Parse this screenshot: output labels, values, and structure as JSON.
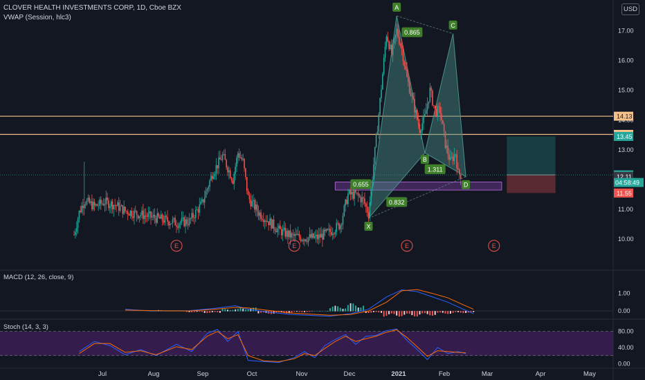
{
  "header": {
    "title": "CLOVER HEALTH INVESTMENTS CORP, 1D, Cboe BZX",
    "indicator": "VWAP (Session, hlc3)",
    "currency": "USD"
  },
  "colors": {
    "background": "#131722",
    "up": "#26a69a",
    "down": "#ef5350",
    "level_line": "#f5c18a",
    "pattern_fill": "#4a8f88",
    "pattern_label": "#3f7f2a",
    "zone": "#7b3fa0",
    "stoch_band": "#4b1f6b",
    "macd_line": "#2962ff",
    "signal_line": "#ff6d00"
  },
  "chart_data": [
    {
      "type": "candlestick",
      "title": "CLOVER HEALTH INVESTMENTS CORP, 1D, Cboe BZX",
      "x_ticks": [
        "Jul",
        "Aug",
        "Sep",
        "Oct",
        "Nov",
        "Dec",
        "2021",
        "Feb",
        "Mar",
        "Apr",
        "May"
      ],
      "y_ticks": [
        "10.00",
        "11.00",
        "12.00",
        "13.00",
        "14.00",
        "15.00",
        "16.00",
        "17.00"
      ],
      "ylim": [
        9.1,
        17.8
      ],
      "close_path": [
        {
          "t": 0,
          "y": 10.15
        },
        {
          "t": 2,
          "y": 10.9
        },
        {
          "t": 4,
          "y": 11.3
        },
        {
          "t": 8,
          "y": 11.1
        },
        {
          "t": 12,
          "y": 11.25
        },
        {
          "t": 16,
          "y": 11.15
        },
        {
          "t": 20,
          "y": 10.95
        },
        {
          "t": 25,
          "y": 10.85
        },
        {
          "t": 30,
          "y": 10.75
        },
        {
          "t": 35,
          "y": 10.65
        },
        {
          "t": 40,
          "y": 10.55
        },
        {
          "t": 45,
          "y": 10.6
        },
        {
          "t": 50,
          "y": 11.2
        },
        {
          "t": 54,
          "y": 12.2
        },
        {
          "t": 58,
          "y": 12.8
        },
        {
          "t": 62,
          "y": 12.0
        },
        {
          "t": 64,
          "y": 12.9
        },
        {
          "t": 66,
          "y": 12.6
        },
        {
          "t": 68,
          "y": 11.4
        },
        {
          "t": 72,
          "y": 10.9
        },
        {
          "t": 76,
          "y": 10.6
        },
        {
          "t": 80,
          "y": 10.3
        },
        {
          "t": 85,
          "y": 10.1
        },
        {
          "t": 90,
          "y": 10.05
        },
        {
          "t": 95,
          "y": 10.05
        },
        {
          "t": 100,
          "y": 10.25
        },
        {
          "t": 104,
          "y": 10.5
        },
        {
          "t": 107,
          "y": 11.5
        },
        {
          "t": 110,
          "y": 11.5
        },
        {
          "t": 113,
          "y": 11.3
        },
        {
          "t": 115,
          "y": 10.85
        },
        {
          "t": 119,
          "y": 14.2
        },
        {
          "t": 122,
          "y": 16.9
        },
        {
          "t": 124,
          "y": 16.2
        },
        {
          "t": 126,
          "y": 17.0
        },
        {
          "t": 128,
          "y": 16.4
        },
        {
          "t": 130,
          "y": 15.4
        },
        {
          "t": 133,
          "y": 14.4
        },
        {
          "t": 135,
          "y": 13.7
        },
        {
          "t": 137,
          "y": 14.1
        },
        {
          "t": 139,
          "y": 15.0
        },
        {
          "t": 141,
          "y": 14.3
        },
        {
          "t": 143,
          "y": 14.3
        },
        {
          "t": 145,
          "y": 13.2
        },
        {
          "t": 147,
          "y": 12.6
        },
        {
          "t": 149,
          "y": 12.9
        },
        {
          "t": 150,
          "y": 12.2
        },
        {
          "t": 151,
          "y": 12.16
        }
      ],
      "volume_spikes": [
        {
          "t": 4,
          "y": 12.6
        }
      ],
      "horizontal_levels": [
        {
          "value": 14.13,
          "label": "14.13"
        },
        {
          "value": 13.52,
          "label": "13.52"
        }
      ],
      "price_labels": [
        {
          "value": 13.45,
          "label": "13.45",
          "color": "#26a69a"
        },
        {
          "value": 12.16,
          "label": "12.16",
          "color": "#26a69a"
        },
        {
          "value": 12.11,
          "label": "12.11",
          "color": "#363a45"
        },
        {
          "value": 11.55,
          "label": "11.55",
          "color": "#ef5350"
        }
      ],
      "countdown": "04:58:49",
      "harmonic_pattern": {
        "points": [
          {
            "name": "X",
            "t": 115,
            "y": 10.7
          },
          {
            "name": "A",
            "t": 126,
            "y": 17.5
          },
          {
            "name": "B",
            "t": 137,
            "y": 12.9
          },
          {
            "name": "C",
            "t": 148,
            "y": 16.9
          },
          {
            "name": "D",
            "t": 153,
            "y": 12.1
          }
        ],
        "ratios": [
          {
            "label": "0.865",
            "t": 132,
            "y": 16.95
          },
          {
            "label": "1.311",
            "t": 141,
            "y": 12.35
          },
          {
            "label": "0.655",
            "t": 112,
            "y": 11.85
          },
          {
            "label": "0.832",
            "t": 126,
            "y": 11.25
          }
        ]
      },
      "zone": {
        "t_start": 102,
        "t_end": 167,
        "y_low": 11.65,
        "y_high": 11.92
      },
      "position": {
        "t_start": 169,
        "t_end": 188,
        "entry": 12.16,
        "target": 13.45,
        "stop": 11.55
      },
      "event_markers": [
        {
          "label": "E",
          "t": 40,
          "y": 9.78
        },
        {
          "label": "E",
          "t": 86,
          "y": 9.78
        },
        {
          "label": "E",
          "t": 130,
          "y": 9.78
        },
        {
          "label": "E",
          "t": 164,
          "y": 9.78
        }
      ]
    },
    {
      "type": "line",
      "title": "MACD (12, 26, close, 9)",
      "y_ticks": [
        "1.00",
        "0.00"
      ],
      "ylim": [
        -0.35,
        1.5
      ],
      "series": [
        {
          "name": "MACD",
          "points": [
            {
              "t": 20,
              "y": 0.1
            },
            {
              "t": 30,
              "y": 0.0
            },
            {
              "t": 45,
              "y": 0.02
            },
            {
              "t": 55,
              "y": 0.15
            },
            {
              "t": 63,
              "y": 0.3
            },
            {
              "t": 68,
              "y": 0.1
            },
            {
              "t": 75,
              "y": -0.05
            },
            {
              "t": 85,
              "y": -0.2
            },
            {
              "t": 100,
              "y": -0.3
            },
            {
              "t": 108,
              "y": -0.15
            },
            {
              "t": 115,
              "y": 0.1
            },
            {
              "t": 122,
              "y": 0.8
            },
            {
              "t": 128,
              "y": 1.2
            },
            {
              "t": 134,
              "y": 1.1
            },
            {
              "t": 140,
              "y": 0.8
            },
            {
              "t": 146,
              "y": 0.5
            },
            {
              "t": 152,
              "y": 0.1
            },
            {
              "t": 156,
              "y": -0.15
            }
          ]
        },
        {
          "name": "Signal",
          "points": [
            {
              "t": 20,
              "y": 0.05
            },
            {
              "t": 30,
              "y": 0.02
            },
            {
              "t": 45,
              "y": 0.0
            },
            {
              "t": 55,
              "y": 0.1
            },
            {
              "t": 63,
              "y": 0.2
            },
            {
              "t": 68,
              "y": 0.17
            },
            {
              "t": 75,
              "y": 0.05
            },
            {
              "t": 85,
              "y": -0.12
            },
            {
              "t": 100,
              "y": -0.24
            },
            {
              "t": 108,
              "y": -0.2
            },
            {
              "t": 115,
              "y": 0.0
            },
            {
              "t": 122,
              "y": 0.5
            },
            {
              "t": 128,
              "y": 1.15
            },
            {
              "t": 134,
              "y": 1.22
            },
            {
              "t": 140,
              "y": 1.0
            },
            {
              "t": 146,
              "y": 0.75
            },
            {
              "t": 152,
              "y": 0.35
            },
            {
              "t": 156,
              "y": 0.1
            }
          ]
        }
      ],
      "histogram": [
        0.05,
        0.0,
        -0.05,
        -0.1,
        0.12,
        0.2,
        -0.15,
        -0.12,
        -0.05,
        0.0,
        0.3,
        0.45,
        -0.1,
        -0.3,
        -0.3,
        -0.25,
        -0.15,
        -0.1
      ]
    },
    {
      "type": "line",
      "title": "Stoch (14, 3, 3)",
      "y_ticks": [
        "80.00",
        "40.00",
        "0.00"
      ],
      "ylim": [
        -8,
        100
      ],
      "band": [
        20,
        80
      ],
      "series": [
        {
          "name": "%K",
          "points": [
            {
              "t": 2,
              "y": 30
            },
            {
              "t": 8,
              "y": 55
            },
            {
              "t": 14,
              "y": 45
            },
            {
              "t": 20,
              "y": 22
            },
            {
              "t": 26,
              "y": 35
            },
            {
              "t": 32,
              "y": 20
            },
            {
              "t": 40,
              "y": 48
            },
            {
              "t": 46,
              "y": 30
            },
            {
              "t": 52,
              "y": 75
            },
            {
              "t": 56,
              "y": 85
            },
            {
              "t": 60,
              "y": 55
            },
            {
              "t": 64,
              "y": 80
            },
            {
              "t": 68,
              "y": 8
            },
            {
              "t": 74,
              "y": 5
            },
            {
              "t": 80,
              "y": 3
            },
            {
              "t": 86,
              "y": 15
            },
            {
              "t": 90,
              "y": 30
            },
            {
              "t": 94,
              "y": 15
            },
            {
              "t": 98,
              "y": 45
            },
            {
              "t": 102,
              "y": 60
            },
            {
              "t": 106,
              "y": 72
            },
            {
              "t": 110,
              "y": 48
            },
            {
              "t": 114,
              "y": 68
            },
            {
              "t": 118,
              "y": 70
            },
            {
              "t": 122,
              "y": 82
            },
            {
              "t": 126,
              "y": 86
            },
            {
              "t": 130,
              "y": 58
            },
            {
              "t": 134,
              "y": 35
            },
            {
              "t": 138,
              "y": 10
            },
            {
              "t": 142,
              "y": 40
            },
            {
              "t": 146,
              "y": 25
            },
            {
              "t": 150,
              "y": 30
            },
            {
              "t": 153,
              "y": 25
            }
          ]
        },
        {
          "name": "%D",
          "points": [
            {
              "t": 2,
              "y": 25
            },
            {
              "t": 8,
              "y": 50
            },
            {
              "t": 14,
              "y": 50
            },
            {
              "t": 20,
              "y": 28
            },
            {
              "t": 26,
              "y": 32
            },
            {
              "t": 32,
              "y": 22
            },
            {
              "t": 40,
              "y": 42
            },
            {
              "t": 46,
              "y": 35
            },
            {
              "t": 52,
              "y": 68
            },
            {
              "t": 56,
              "y": 80
            },
            {
              "t": 60,
              "y": 62
            },
            {
              "t": 64,
              "y": 72
            },
            {
              "t": 68,
              "y": 20
            },
            {
              "t": 74,
              "y": 7
            },
            {
              "t": 80,
              "y": 5
            },
            {
              "t": 86,
              "y": 12
            },
            {
              "t": 90,
              "y": 25
            },
            {
              "t": 94,
              "y": 20
            },
            {
              "t": 98,
              "y": 38
            },
            {
              "t": 102,
              "y": 55
            },
            {
              "t": 106,
              "y": 68
            },
            {
              "t": 110,
              "y": 55
            },
            {
              "t": 114,
              "y": 62
            },
            {
              "t": 118,
              "y": 68
            },
            {
              "t": 122,
              "y": 78
            },
            {
              "t": 126,
              "y": 84
            },
            {
              "t": 130,
              "y": 65
            },
            {
              "t": 134,
              "y": 42
            },
            {
              "t": 138,
              "y": 18
            },
            {
              "t": 142,
              "y": 32
            },
            {
              "t": 146,
              "y": 30
            },
            {
              "t": 150,
              "y": 28
            },
            {
              "t": 153,
              "y": 27
            }
          ]
        }
      ]
    }
  ]
}
